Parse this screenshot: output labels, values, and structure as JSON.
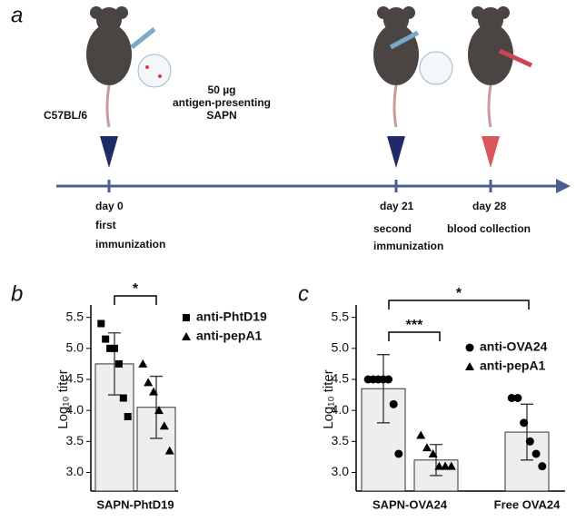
{
  "diagram": {
    "panel_label": "a",
    "strain": "C57BL/6",
    "dose": [
      "50 µg",
      "antigen-presenting",
      "SAPN"
    ],
    "events": [
      {
        "day": "day 0",
        "label": [
          "first",
          "immunization"
        ]
      },
      {
        "day": "day 21",
        "label": [
          "second",
          "immunization"
        ]
      },
      {
        "day": "day 28",
        "label": [
          "blood collection"
        ]
      }
    ]
  },
  "chart_data": [
    {
      "type": "bar",
      "panel_label": "b",
      "ylabel": "Log₁₀ titer",
      "categories": [
        "SAPN-PhtD19"
      ],
      "series": [
        {
          "name": "anti-PhtD19",
          "marker": "square",
          "color": "#eeeeee",
          "values": [
            4.75
          ],
          "errors": [
            0.5
          ],
          "points": [
            [
              5.4,
              5.15,
              5.0,
              5.0,
              4.75,
              4.2,
              3.9
            ]
          ]
        },
        {
          "name": "anti-pepA1",
          "marker": "triangle",
          "color": "#eeeeee",
          "values": [
            4.05
          ],
          "errors": [
            0.5
          ],
          "points": [
            [
              4.75,
              4.45,
              4.3,
              4.0,
              3.75,
              3.35
            ]
          ]
        }
      ],
      "ylim": [
        2.7,
        5.7
      ],
      "yticks": [
        {
          "value": 3,
          "label": "3.0"
        },
        3.5,
        {
          "value": 4,
          "label": "4.0"
        },
        4.5,
        {
          "value": 5,
          "label": "5.0"
        },
        5.5
      ],
      "annotations": [
        "*"
      ]
    },
    {
      "type": "bar",
      "panel_label": "c",
      "ylabel": "Log₁₀ titer",
      "categories": [
        "SAPN-OVA24",
        "Free OVA24"
      ],
      "series": [
        {
          "name": "anti-OVA24",
          "marker": "circle",
          "color": "#eeeeee",
          "values": [
            4.35,
            3.65
          ],
          "errors": [
            0.55,
            0.45
          ],
          "points": [
            [
              4.5,
              4.5,
              4.5,
              4.5,
              4.5,
              4.1,
              3.3
            ],
            [
              4.2,
              4.2,
              3.8,
              3.5,
              3.3,
              3.1
            ]
          ]
        },
        {
          "name": "anti-pepA1",
          "marker": "triangle",
          "color": "#eeeeee",
          "values": [
            3.2,
            null
          ],
          "errors": [
            0.25,
            null
          ],
          "points": [
            [
              3.6,
              3.4,
              3.3,
              3.1,
              3.1,
              3.1
            ],
            null
          ]
        }
      ],
      "ylim": [
        2.7,
        5.7
      ],
      "yticks": [
        {
          "value": 3,
          "label": "3.0"
        },
        3.5,
        {
          "value": 4,
          "label": "4.0"
        },
        4.5,
        {
          "value": 5,
          "label": "5.0"
        },
        5.5
      ],
      "annotations": [
        "***",
        "*"
      ]
    }
  ]
}
